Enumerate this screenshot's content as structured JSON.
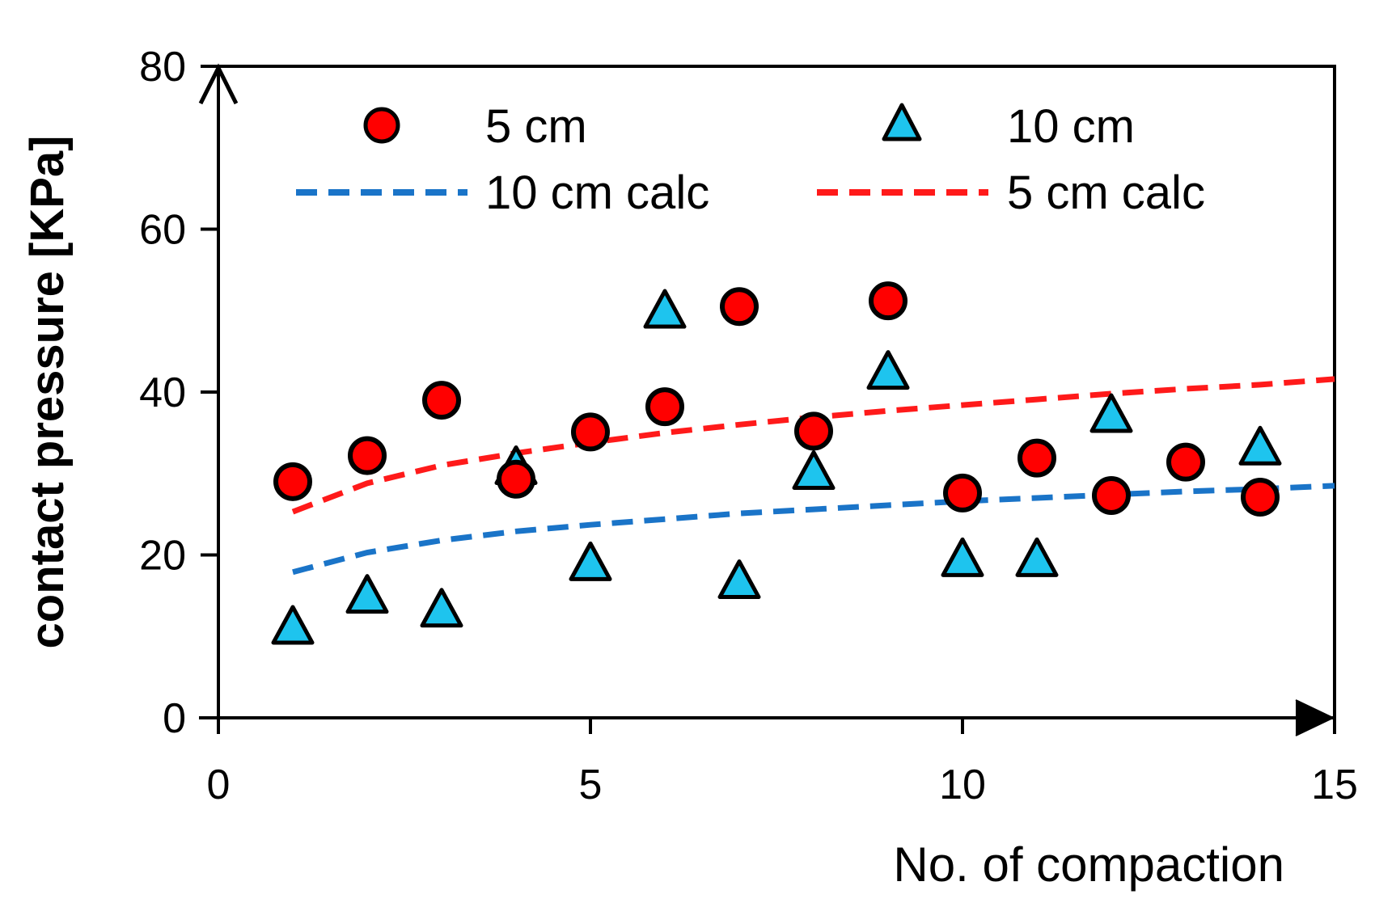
{
  "chart_data": {
    "type": "scatter",
    "title": "",
    "xlabel": "No. of compaction",
    "ylabel": "contact pressure [KPa]",
    "xlim": [
      0,
      15
    ],
    "ylim": [
      0,
      80
    ],
    "x_ticks": [
      "0",
      "5",
      "10",
      "15"
    ],
    "y_ticks": [
      "0",
      "20",
      "40",
      "60",
      "80"
    ],
    "grid": false,
    "legend_position": "top",
    "colors": {
      "red_marker": "#ff0000",
      "cyan_marker": "#1ec4ee",
      "blue_line": "#1a74c8",
      "red_line": "#ff1a1a",
      "axis": "#000000"
    },
    "series": [
      {
        "name": "5 cm",
        "kind": "marker",
        "marker": "circle",
        "x": [
          1,
          2,
          3,
          4,
          5,
          6,
          7,
          8,
          9,
          10,
          11,
          12,
          13,
          14
        ],
        "y": [
          29,
          32.2,
          39,
          29.3,
          35.1,
          38.2,
          50.5,
          35.2,
          51.2,
          27.6,
          31.9,
          27.3,
          31.4,
          27.1
        ]
      },
      {
        "name": "10 cm",
        "kind": "marker",
        "marker": "triangle",
        "x": [
          1,
          2,
          3,
          4,
          5,
          6,
          7,
          8,
          9,
          10,
          11,
          12,
          13,
          14
        ],
        "y": [
          11.2,
          15,
          13.3,
          30.8,
          19,
          50,
          16.8,
          30.2,
          42.5,
          19.5,
          19.5,
          37.2,
          null,
          33.2
        ]
      },
      {
        "name": "10 cm calc",
        "kind": "line",
        "dash": "dashed",
        "x": [
          1,
          2,
          3,
          4,
          5,
          6,
          7,
          8,
          9,
          10,
          11,
          12,
          13,
          14,
          15
        ],
        "y": [
          17.9,
          20.3,
          21.8,
          22.9,
          23.7,
          24.4,
          25.1,
          25.6,
          26.1,
          26.6,
          27.0,
          27.4,
          27.8,
          28.1,
          28.5
        ]
      },
      {
        "name": "5 cm calc",
        "kind": "line",
        "dash": "dashed",
        "x": [
          1,
          2,
          3,
          4,
          5,
          6,
          7,
          8,
          9,
          10,
          11,
          12,
          13,
          14,
          15
        ],
        "y": [
          25.3,
          28.8,
          31.0,
          32.5,
          33.8,
          35.0,
          36.0,
          36.9,
          37.7,
          38.4,
          39.1,
          39.8,
          40.4,
          40.9,
          41.6
        ]
      }
    ]
  }
}
